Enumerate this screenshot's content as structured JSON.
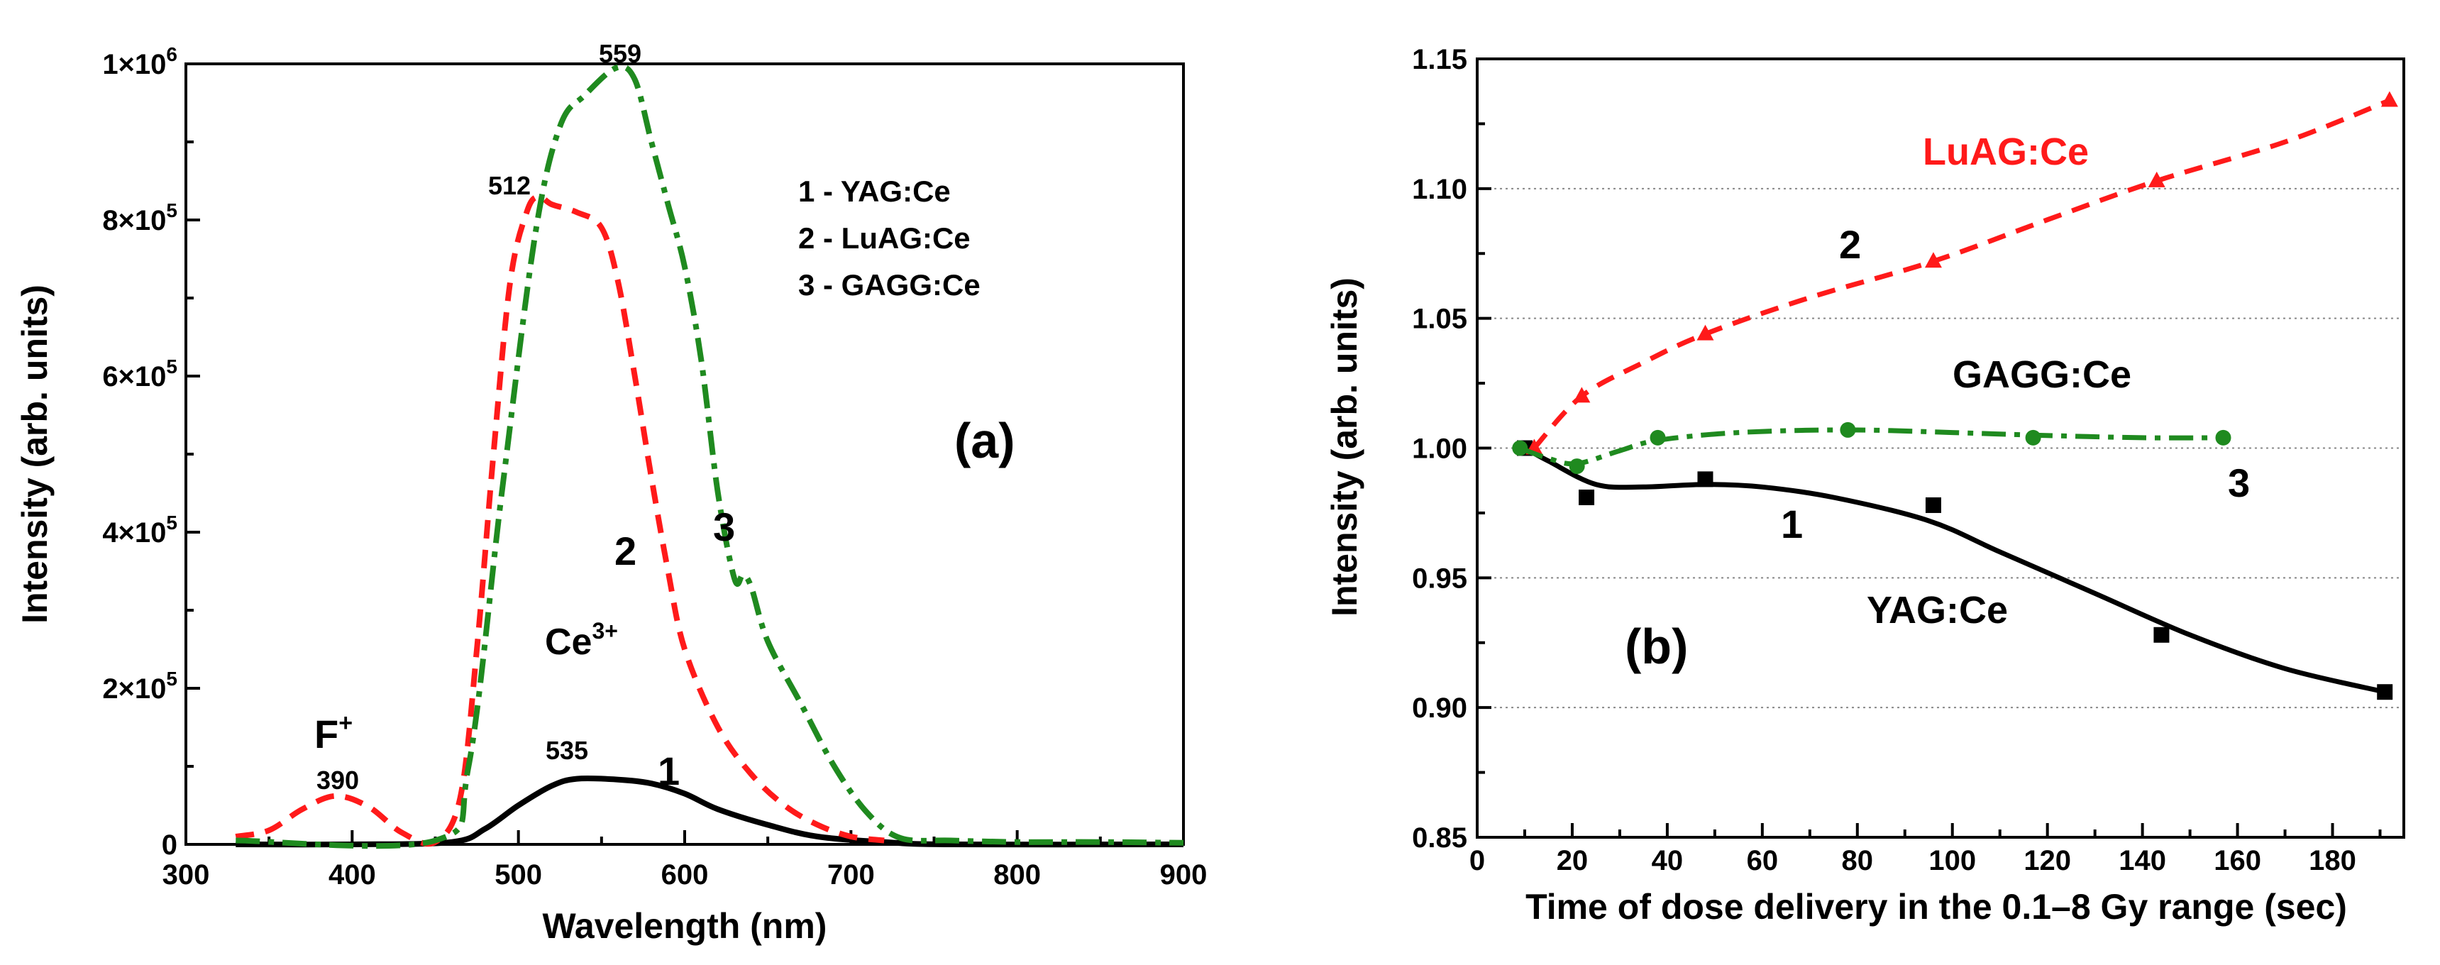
{
  "chart_data": [
    {
      "id": "a",
      "type": "line",
      "panel_label": "(a)",
      "xlabel": "Wavelength (nm)",
      "ylabel": "Intensity (arb. units)",
      "xlim": [
        300,
        900
      ],
      "ylim": [
        0,
        1000000
      ],
      "x_ticks": [
        300,
        400,
        500,
        600,
        700,
        800,
        900
      ],
      "x_tick_labels": [
        "300",
        "400",
        "500",
        "600",
        "700",
        "800",
        "900"
      ],
      "y_ticks": [
        0,
        200000,
        400000,
        600000,
        800000,
        1000000
      ],
      "y_tick_labels": [
        {
          "mant": "0",
          "exp": ""
        },
        {
          "mant": "2×10",
          "exp": "5"
        },
        {
          "mant": "4×10",
          "exp": "5"
        },
        {
          "mant": "6×10",
          "exp": "5"
        },
        {
          "mant": "8×10",
          "exp": "5"
        },
        {
          "mant": "1×10",
          "exp": "6"
        }
      ],
      "legend": [
        "1 - YAG:Ce",
        "2 - LuAG:Ce",
        "3 - GAGG:Ce"
      ],
      "series": [
        {
          "name": "YAG:Ce",
          "number": "1",
          "color": "#000000",
          "style": "solid",
          "x": [
            330,
            400,
            460,
            480,
            500,
            520,
            535,
            560,
            580,
            600,
            620,
            650,
            680,
            720,
            760,
            900
          ],
          "y": [
            0,
            0,
            3000,
            20000,
            50000,
            75000,
            84000,
            83000,
            78000,
            65000,
            45000,
            25000,
            10000,
            3000,
            0,
            0
          ]
        },
        {
          "name": "LuAG:Ce",
          "number": "2",
          "color": "#ff1a1a",
          "style": "dash",
          "x": [
            330,
            350,
            370,
            390,
            410,
            430,
            450,
            465,
            475,
            485,
            495,
            505,
            512,
            520,
            535,
            550,
            560,
            570,
            580,
            590,
            600,
            620,
            640,
            660,
            680,
            700,
            720
          ],
          "y": [
            10000,
            18000,
            45000,
            62000,
            48000,
            15000,
            3000,
            60000,
            250000,
            500000,
            720000,
            810000,
            830000,
            820000,
            810000,
            790000,
            720000,
            600000,
            470000,
            350000,
            250000,
            150000,
            90000,
            50000,
            25000,
            10000,
            5000
          ]
        },
        {
          "name": "GAGG:Ce",
          "number": "3",
          "color": "#1f8a1f",
          "style": "dashdot",
          "x": [
            330,
            450,
            470,
            490,
            510,
            525,
            540,
            559,
            570,
            580,
            590,
            600,
            610,
            620,
            630,
            635,
            640,
            650,
            670,
            690,
            710,
            730,
            760,
            800,
            850,
            900
          ],
          "y": [
            5000,
            5000,
            100000,
            450000,
            780000,
            920000,
            960000,
            995000,
            980000,
            900000,
            820000,
            740000,
            620000,
            450000,
            340000,
            345000,
            330000,
            260000,
            180000,
            100000,
            40000,
            8000,
            5000,
            3000,
            3000,
            2000
          ]
        }
      ],
      "annotations": {
        "label_1": "1",
        "label_2": "2",
        "label_3": "3",
        "peak_390": "390",
        "peak_512": "512",
        "peak_535": "535",
        "peak_559": "559",
        "f_center_base": "F",
        "f_center_sup": "+",
        "ce_base": "Ce",
        "ce_sup": "3+"
      }
    },
    {
      "id": "b",
      "type": "line",
      "panel_label": "(b)",
      "xlabel": "Time of dose delivery in the 0.1–8 Gy range (sec)",
      "ylabel": "Intensity (arb. units)",
      "xlim": [
        0,
        195
      ],
      "ylim": [
        0.85,
        1.15
      ],
      "x_ticks": [
        0,
        20,
        40,
        60,
        80,
        100,
        120,
        140,
        160,
        180
      ],
      "x_tick_labels": [
        "0",
        "20",
        "40",
        "60",
        "80",
        "100",
        "120",
        "140",
        "160",
        "180"
      ],
      "y_ticks": [
        0.85,
        0.9,
        0.95,
        1.0,
        1.05,
        1.1,
        1.15
      ],
      "y_tick_labels": [
        "0.85",
        "0.90",
        "0.95",
        "1.00",
        "1.05",
        "1.10",
        "1.15"
      ],
      "series": [
        {
          "name": "YAG:Ce",
          "number": "1",
          "color": "#000000",
          "style": "solid",
          "marker": "square",
          "points_x": [
            10,
            23,
            48,
            96,
            144,
            191
          ],
          "points_y": [
            1.0,
            0.981,
            0.988,
            0.978,
            0.928,
            0.906
          ],
          "curve_x": [
            10,
            15,
            25,
            35,
            48,
            60,
            75,
            95,
            110,
            130,
            150,
            170,
            191
          ],
          "curve_y": [
            1.0,
            0.995,
            0.986,
            0.985,
            0.986,
            0.985,
            0.981,
            0.972,
            0.96,
            0.944,
            0.928,
            0.915,
            0.906
          ]
        },
        {
          "name": "LuAG:Ce",
          "number": "2",
          "color": "#ff1a1a",
          "style": "dash",
          "marker": "triangle",
          "points_x": [
            12,
            22,
            48,
            96,
            143,
            192
          ],
          "points_y": [
            1.0,
            1.02,
            1.044,
            1.072,
            1.103,
            1.134
          ],
          "curve_x": [
            12,
            22,
            35,
            48,
            70,
            96,
            120,
            143,
            170,
            192
          ],
          "curve_y": [
            1.0,
            1.02,
            1.033,
            1.044,
            1.058,
            1.072,
            1.088,
            1.103,
            1.118,
            1.134
          ]
        },
        {
          "name": "GAGG:Ce",
          "number": "3",
          "color": "#1f8a1f",
          "style": "dashdot",
          "marker": "circle",
          "points_x": [
            9,
            21,
            38,
            78,
            117,
            157
          ],
          "points_y": [
            1.0,
            0.993,
            1.004,
            1.007,
            1.004,
            1.004
          ],
          "curve_x": [
            9,
            15,
            21,
            30,
            38,
            55,
            78,
            100,
            117,
            140,
            157
          ],
          "curve_y": [
            1.0,
            0.996,
            0.994,
            0.999,
            1.003,
            1.006,
            1.007,
            1.006,
            1.005,
            1.004,
            1.004
          ]
        }
      ],
      "annotations": {
        "luag_name": "LuAG:Ce",
        "gagg_name": "GAGG:Ce",
        "yag_name": "YAG:Ce",
        "label_1": "1",
        "label_2": "2",
        "label_3": "3"
      }
    }
  ]
}
